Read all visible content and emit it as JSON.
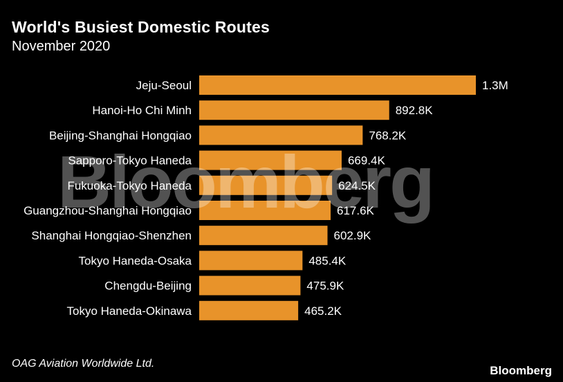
{
  "header": {
    "title": "World's Busiest Domestic Routes",
    "subtitle": "November 2020"
  },
  "footer": {
    "source": "OAG Aviation Worldwide Ltd.",
    "brand": "Bloomberg"
  },
  "watermark": "Bloomberg",
  "colors": {
    "background": "#000000",
    "bar": "#e8932a",
    "text": "#ffffff"
  },
  "chart_data": {
    "type": "bar",
    "orientation": "horizontal",
    "title": "World's Busiest Domestic Routes",
    "subtitle": "November 2020",
    "categories": [
      "Jeju-Seoul",
      "Hanoi-Ho Chi Minh",
      "Beijing-Shanghai Hongqiao",
      "Sapporo-Tokyo Haneda",
      "Fukuoka-Tokyo Haneda",
      "Guangzhou-Shanghai Hongqiao",
      "Shanghai Hongqiao-Shenzhen",
      "Tokyo Haneda-Osaka",
      "Chengdu-Beijing",
      "Tokyo Haneda-Okinawa"
    ],
    "values": [
      1300000,
      892800,
      768200,
      669400,
      624500,
      617600,
      602900,
      485400,
      475900,
      465200
    ],
    "value_labels": [
      "1.3M",
      "892.8K",
      "768.2K",
      "669.4K",
      "624.5K",
      "617.6K",
      "602.9K",
      "485.4K",
      "475.9K",
      "465.2K"
    ],
    "xlim": [
      0,
      1300000
    ],
    "grid": false,
    "legend": "none"
  }
}
